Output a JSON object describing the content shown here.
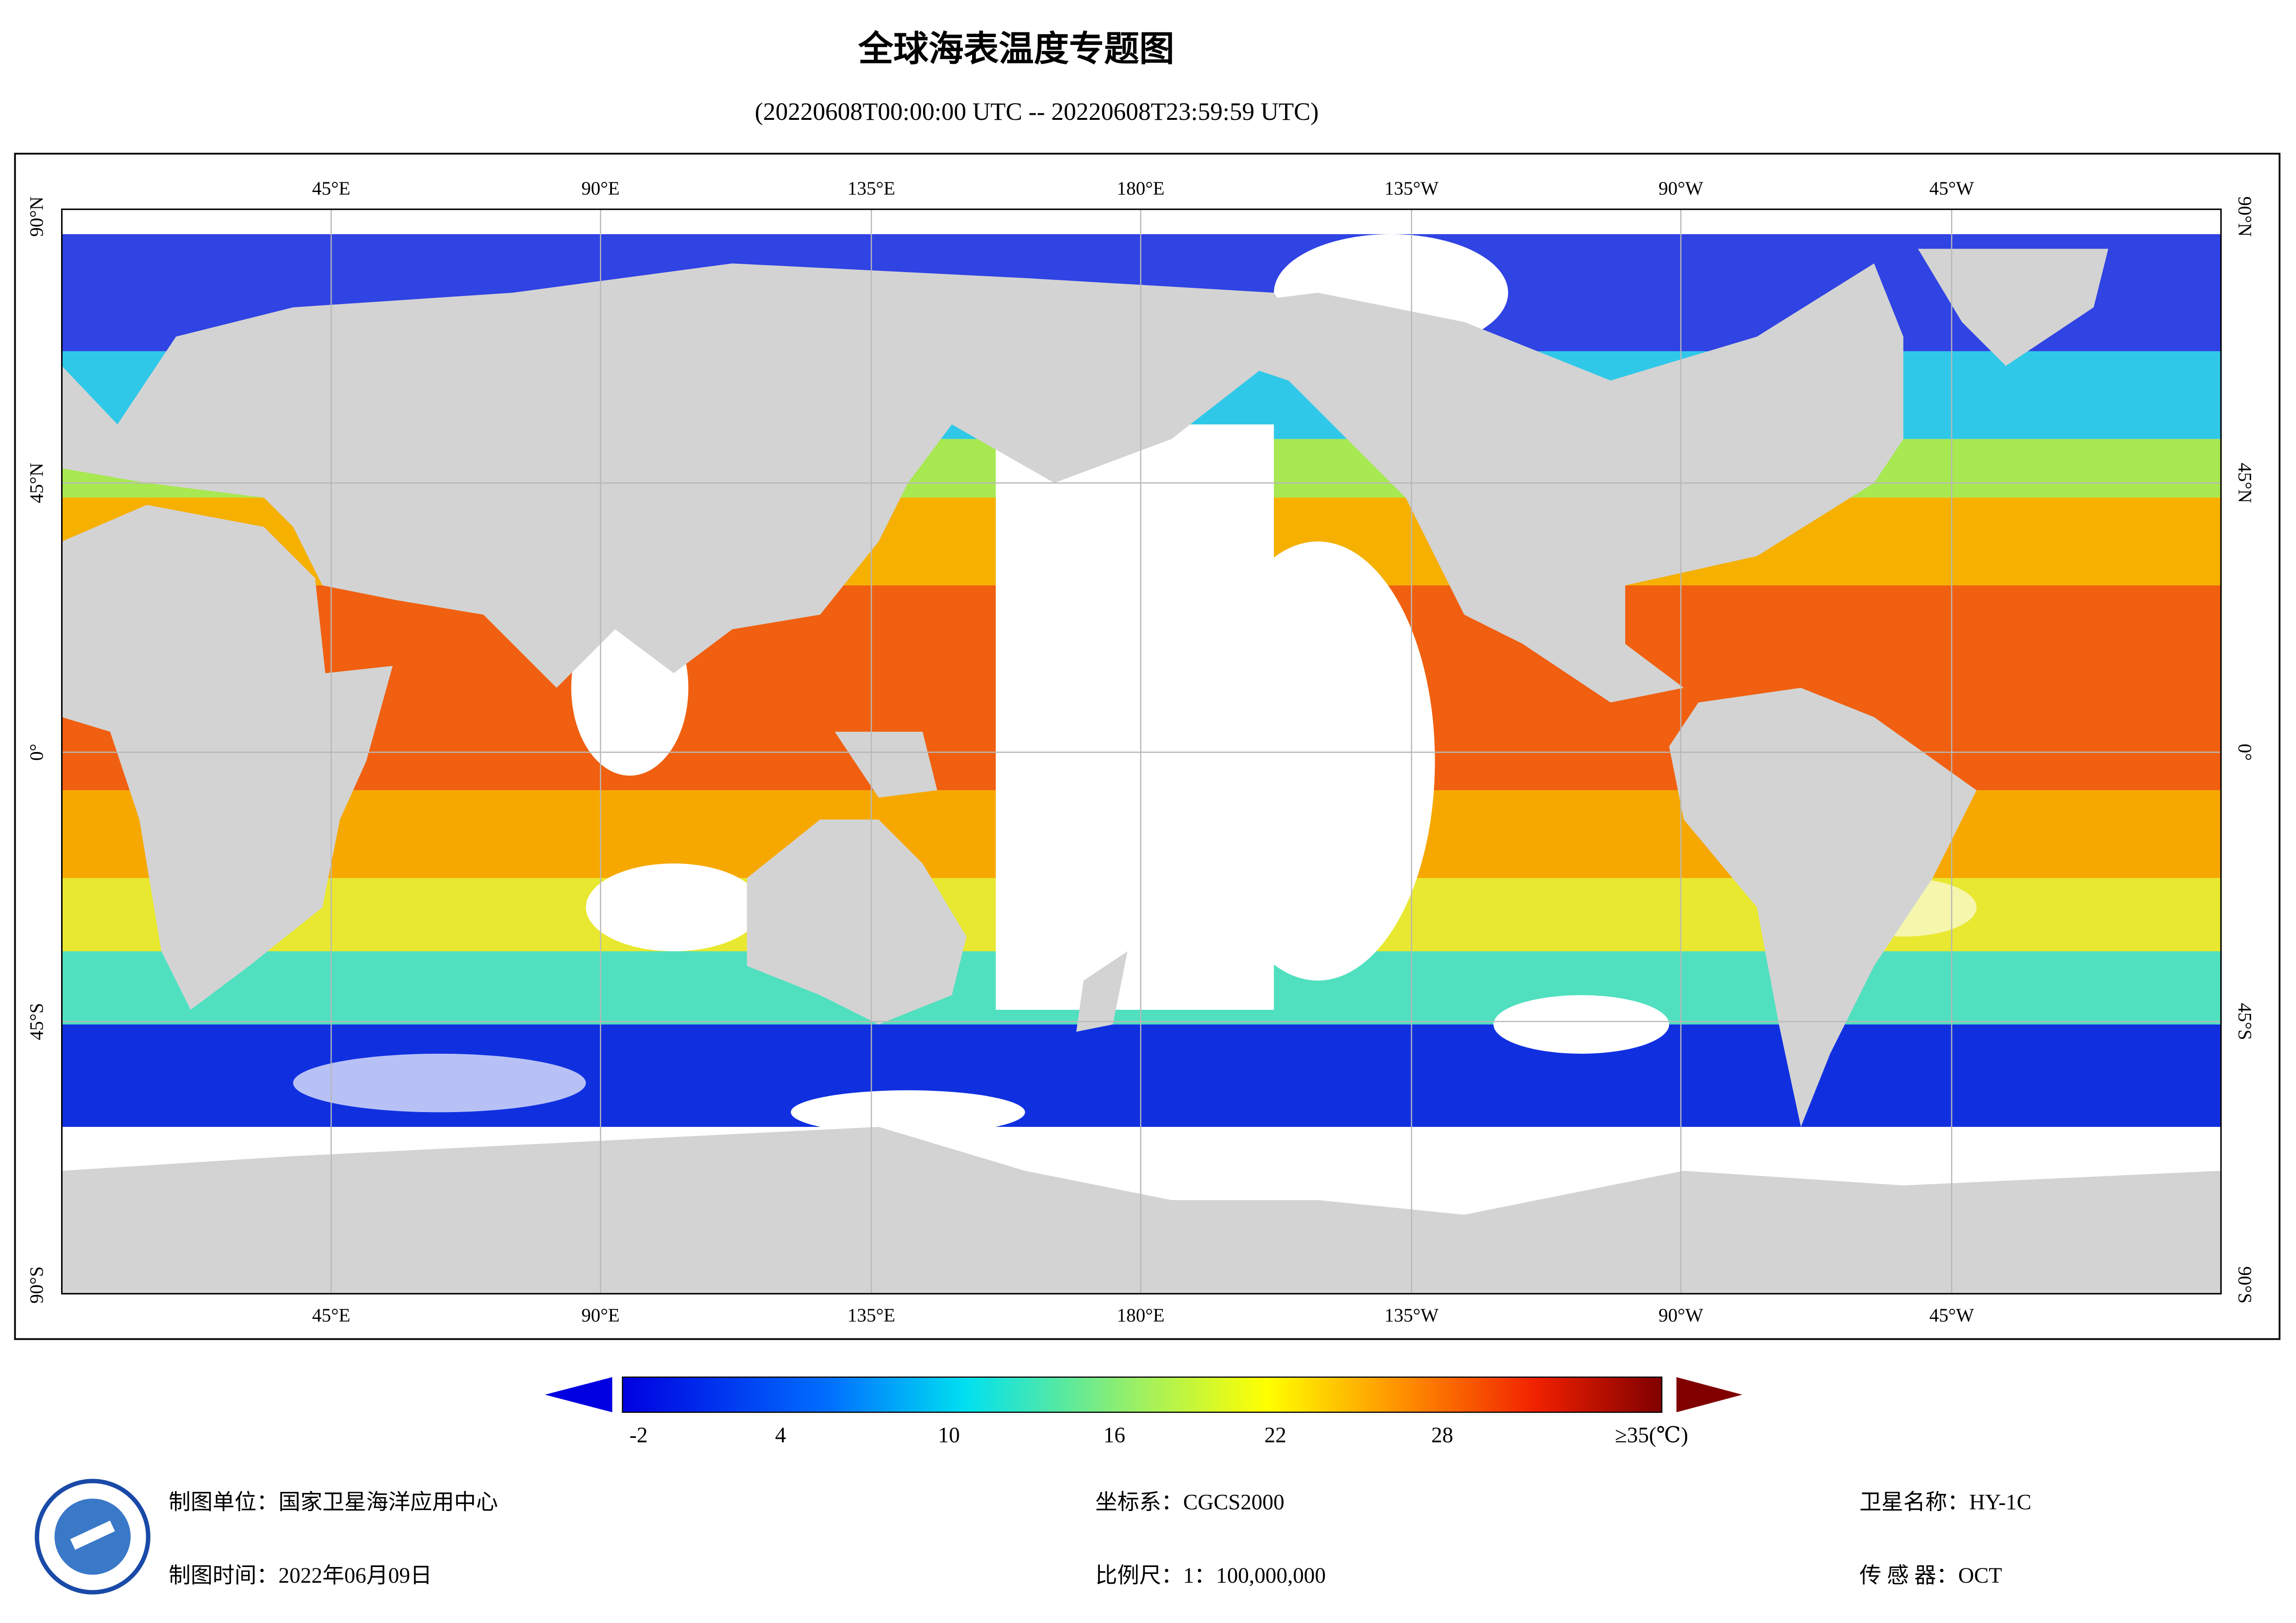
{
  "header": {
    "title": "全球海表温度专题图",
    "subtitle": "(20220608T00:00:00 UTC -- 20220608T23:59:59 UTC)"
  },
  "map": {
    "top_labels": [
      "45°E",
      "90°E",
      "135°E",
      "180°E",
      "135°W",
      "90°W",
      "45°W"
    ],
    "bottom_labels": [
      "45°E",
      "90°E",
      "135°E",
      "180°E",
      "135°W",
      "90°W",
      "45°W"
    ],
    "left_labels": [
      "90°N",
      "45°N",
      "0°",
      "45°S",
      "90°S"
    ],
    "right_labels": [
      "90°N",
      "45°N",
      "0°",
      "45°S",
      "90°S"
    ]
  },
  "colorbar": {
    "labels": [
      "-2",
      "4",
      "10",
      "16",
      "22",
      "28",
      "≥35(℃)"
    ]
  },
  "footer": {
    "items": [
      "制图单位：国家卫星海洋应用中心",
      "制图时间：2022年06月09日",
      "坐标系：CGCS2000",
      "比例尺：1：100,000,000",
      "卫星名称：HY-1C",
      "传 感 器：OCT"
    ]
  }
}
